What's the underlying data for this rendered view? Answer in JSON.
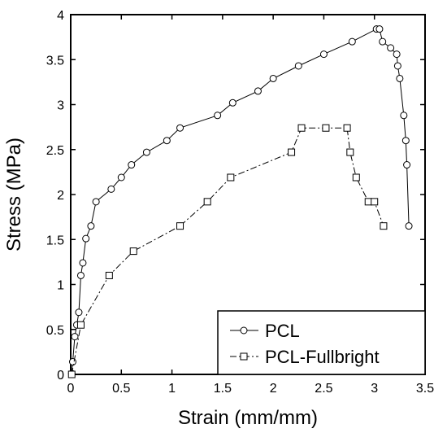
{
  "chart_data": {
    "type": "line",
    "xlabel": "Strain (mm/mm)",
    "ylabel": "Stress (MPa)",
    "xlim": [
      0,
      3.5
    ],
    "ylim": [
      0,
      4
    ],
    "xticks": [
      "0",
      "0.5",
      "1",
      "1.5",
      "2",
      "2.5",
      "3",
      "3.5"
    ],
    "yticks": [
      "0",
      "0.5",
      "1",
      "1.5",
      "2",
      "2.5",
      "3",
      "3.5",
      "4"
    ],
    "grid": false,
    "legend": {
      "placement": "bottom-right"
    },
    "series": [
      {
        "name": "PCL",
        "marker": "circle",
        "line": "solid",
        "color": "#000000",
        "points": [
          [
            0.01,
            0.01
          ],
          [
            0.02,
            0.14
          ],
          [
            0.04,
            0.42
          ],
          [
            0.06,
            0.55
          ],
          [
            0.08,
            0.69
          ],
          [
            0.1,
            1.1
          ],
          [
            0.12,
            1.24
          ],
          [
            0.15,
            1.51
          ],
          [
            0.2,
            1.65
          ],
          [
            0.25,
            1.92
          ],
          [
            0.4,
            2.06
          ],
          [
            0.5,
            2.19
          ],
          [
            0.6,
            2.33
          ],
          [
            0.75,
            2.47
          ],
          [
            0.95,
            2.6
          ],
          [
            1.08,
            2.74
          ],
          [
            1.45,
            2.88
          ],
          [
            1.6,
            3.02
          ],
          [
            1.85,
            3.15
          ],
          [
            2.0,
            3.29
          ],
          [
            2.25,
            3.43
          ],
          [
            2.5,
            3.56
          ],
          [
            2.78,
            3.7
          ],
          [
            3.02,
            3.84
          ],
          [
            3.05,
            3.84
          ],
          [
            3.08,
            3.7
          ],
          [
            3.16,
            3.63
          ],
          [
            3.22,
            3.56
          ],
          [
            3.23,
            3.43
          ],
          [
            3.25,
            3.29
          ],
          [
            3.29,
            2.88
          ],
          [
            3.31,
            2.6
          ],
          [
            3.32,
            2.33
          ],
          [
            3.34,
            1.65
          ]
        ]
      },
      {
        "name": "PCL-Fullbright",
        "marker": "square",
        "line": "dashdot",
        "color": "#000000",
        "points": [
          [
            0.01,
            0.0
          ],
          [
            0.1,
            0.55
          ],
          [
            0.38,
            1.1
          ],
          [
            0.62,
            1.37
          ],
          [
            1.08,
            1.65
          ],
          [
            1.35,
            1.92
          ],
          [
            1.58,
            2.19
          ],
          [
            2.18,
            2.47
          ],
          [
            2.28,
            2.74
          ],
          [
            2.52,
            2.74
          ],
          [
            2.73,
            2.74
          ],
          [
            2.76,
            2.47
          ],
          [
            2.82,
            2.19
          ],
          [
            2.94,
            1.92
          ],
          [
            3.0,
            1.92
          ],
          [
            3.09,
            1.65
          ]
        ]
      }
    ]
  }
}
